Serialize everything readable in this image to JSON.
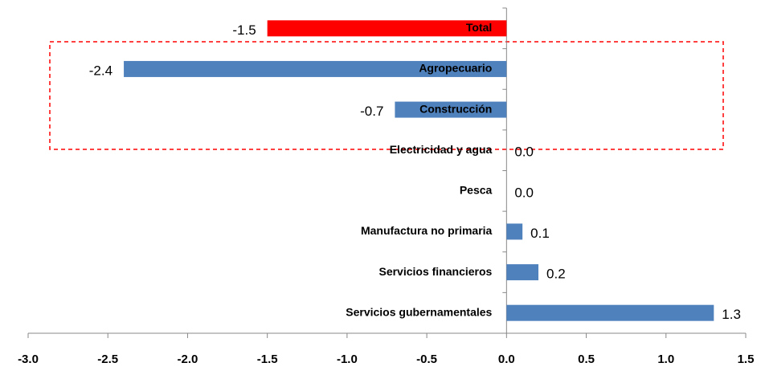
{
  "chart_data": {
    "type": "bar",
    "orientation": "horizontal",
    "categories": [
      "Total",
      "Agropecuario",
      "Construcción",
      "Electricidad y agua",
      "Pesca",
      "Manufactura no primaria",
      "Servicios financieros",
      "Servicios gubernamentales"
    ],
    "values": [
      -1.5,
      -2.4,
      -0.7,
      0.0,
      0.0,
      0.1,
      0.2,
      1.3
    ],
    "value_labels": [
      "-1.5",
      "-2.4",
      "-0.7",
      "0.0",
      "0.0",
      "0.1",
      "0.2",
      "1.3"
    ],
    "colors": [
      "#ff0000",
      "#4f81bd",
      "#4f81bd",
      "#4f81bd",
      "#4f81bd",
      "#4f81bd",
      "#4f81bd",
      "#4f81bd"
    ],
    "xlim": [
      -3,
      1.5
    ],
    "xticks": [
      {
        "value": -3,
        "label": "-3.0"
      },
      {
        "value": -2.5,
        "label": "-2.5"
      },
      {
        "value": -2,
        "label": "-2.0"
      },
      {
        "value": -1.5,
        "label": "-1.5"
      },
      {
        "value": -1,
        "label": "-1.0"
      },
      {
        "value": -0.5,
        "label": "-0.5"
      },
      {
        "value": 0,
        "label": "0.0"
      },
      {
        "value": 0.5,
        "label": "0.5"
      },
      {
        "value": 1,
        "label": "1.0"
      },
      {
        "value": 1.5,
        "label": "1.5"
      }
    ]
  }
}
